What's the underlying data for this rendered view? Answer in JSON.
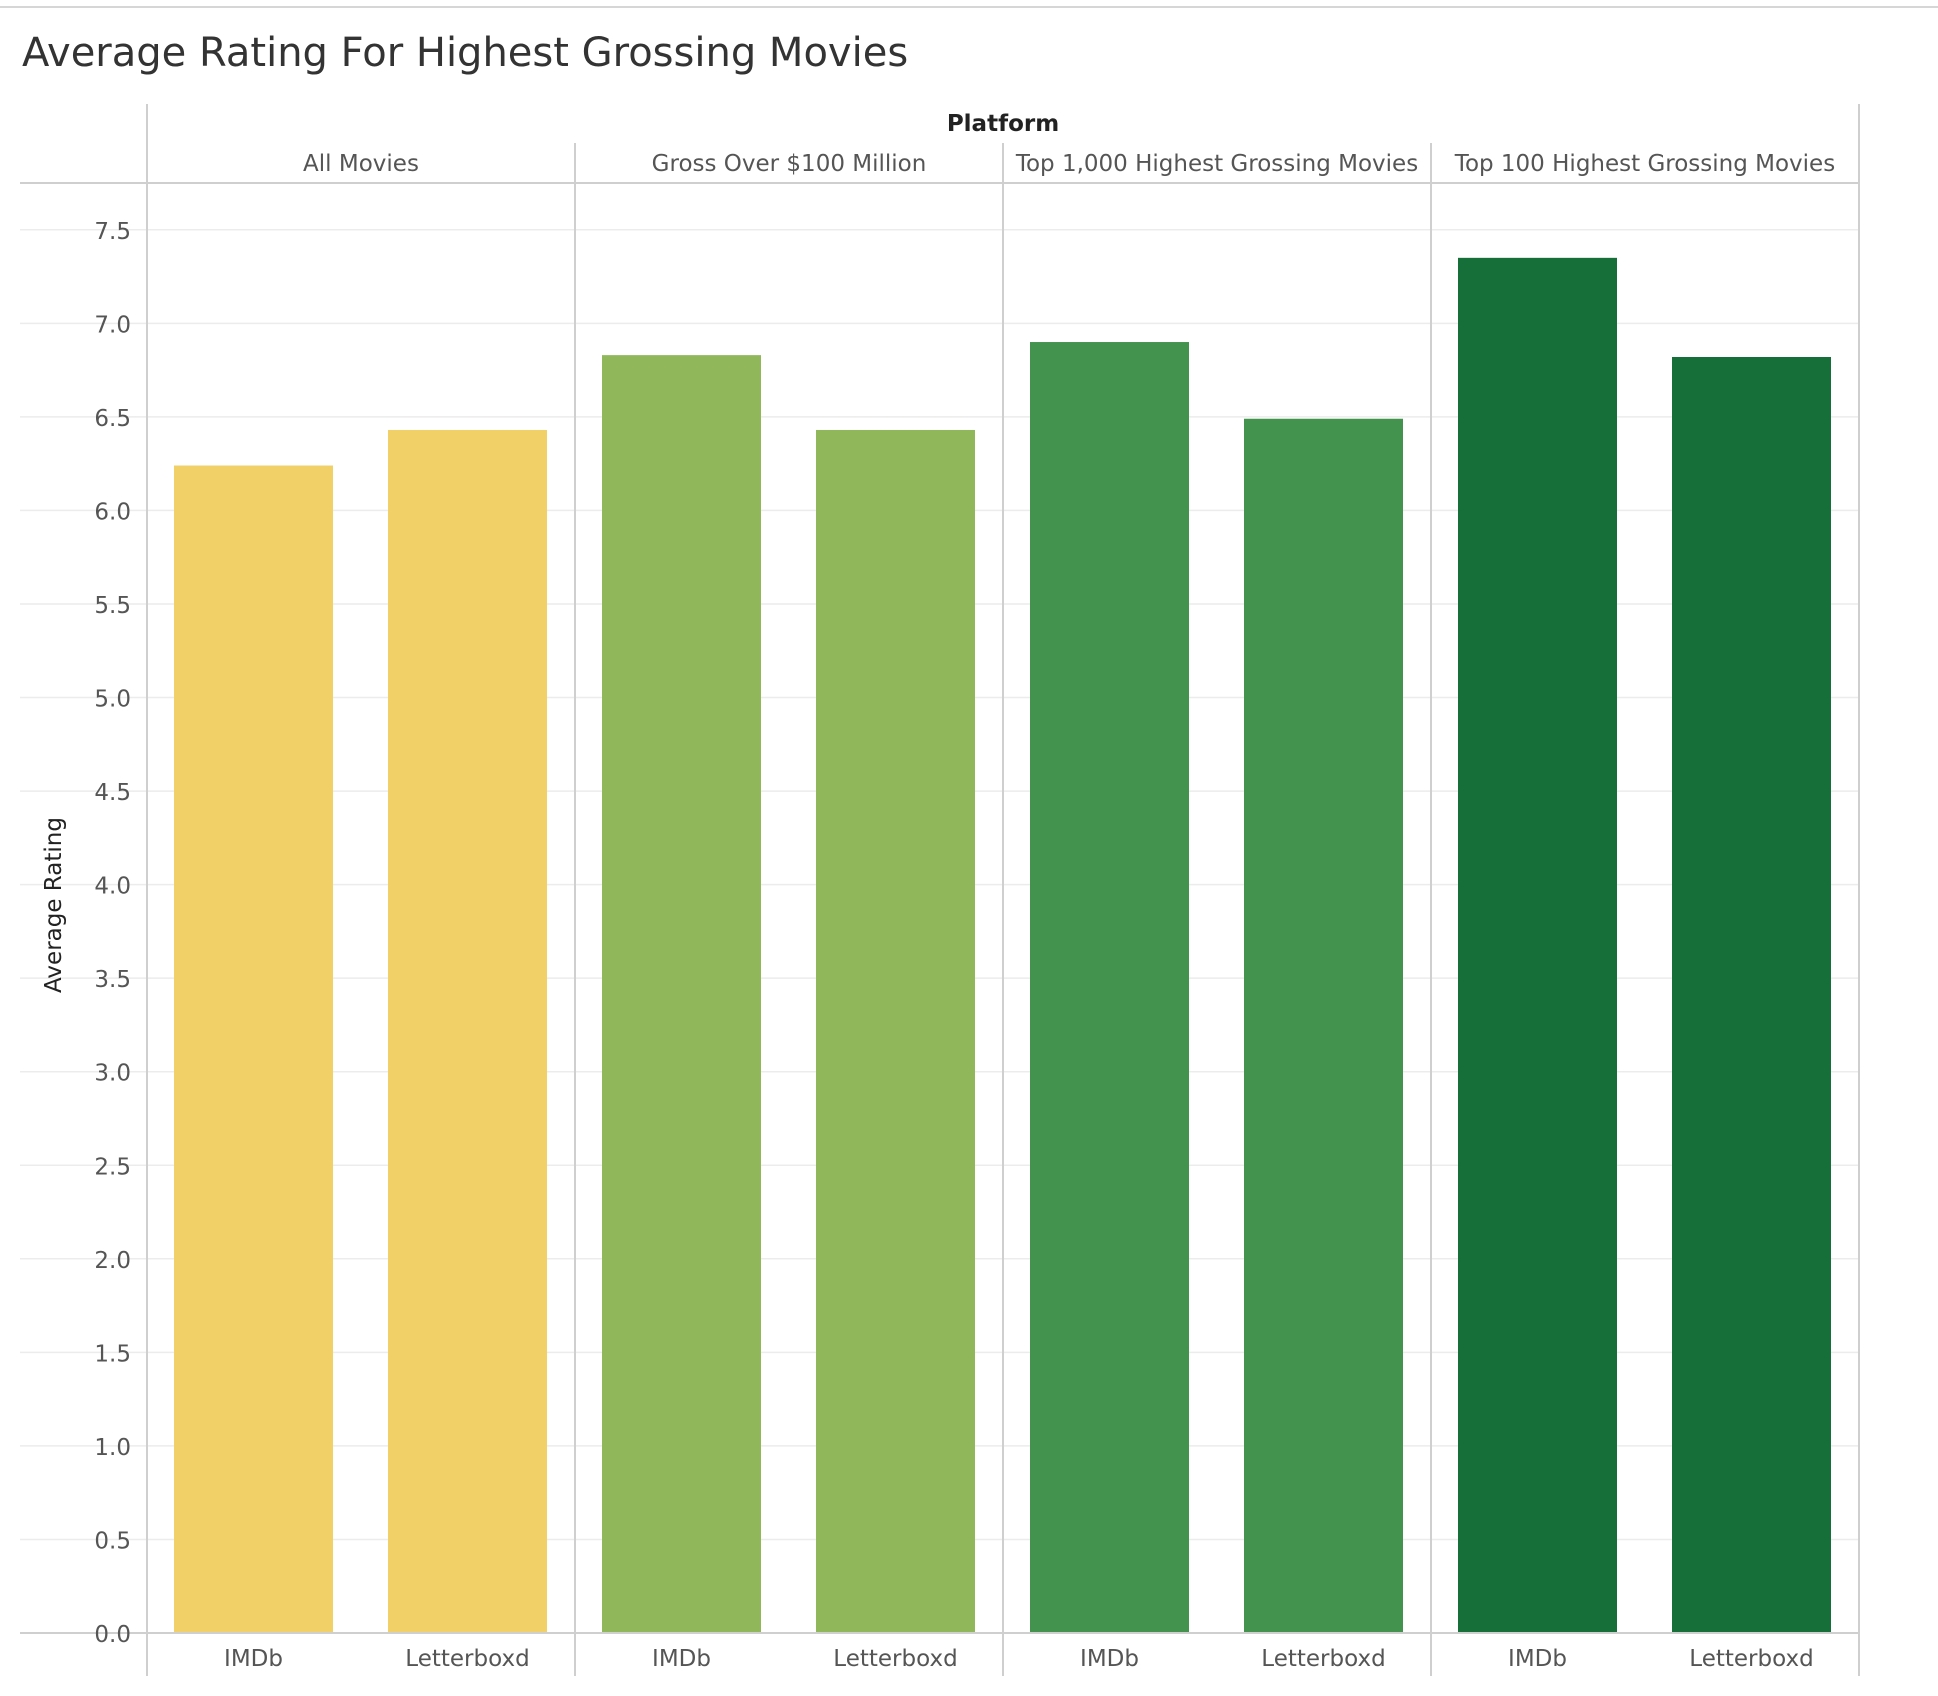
{
  "chart_data": {
    "type": "bar",
    "title": "Average Rating For Highest Grossing Movies",
    "column_header": "Platform",
    "ylabel": "Average Rating",
    "ylim": [
      0,
      7.75
    ],
    "yticks": [
      "0.0",
      "0.5",
      "1.0",
      "1.5",
      "2.0",
      "2.5",
      "3.0",
      "3.5",
      "4.0",
      "4.5",
      "5.0",
      "5.5",
      "6.0",
      "6.5",
      "7.0",
      "7.5"
    ],
    "grid": true,
    "legend": "none",
    "groups": [
      {
        "name": "All Movies",
        "color": "#f2d068",
        "categories": [
          "IMDb",
          "Letterboxd"
        ],
        "values": [
          6.24,
          6.43
        ]
      },
      {
        "name": "Gross Over $100 Million",
        "color": "#90b85a",
        "categories": [
          "IMDb",
          "Letterboxd"
        ],
        "values": [
          6.83,
          6.43
        ]
      },
      {
        "name": "Top 1,000 Highest Grossing Movies",
        "color": "#43934e",
        "categories": [
          "IMDb",
          "Letterboxd"
        ],
        "values": [
          6.9,
          6.49
        ]
      },
      {
        "name": "Top 100 Highest Grossing Movies",
        "color": "#166e38",
        "categories": [
          "IMDb",
          "Letterboxd"
        ],
        "values": [
          7.35,
          6.82
        ]
      }
    ]
  }
}
